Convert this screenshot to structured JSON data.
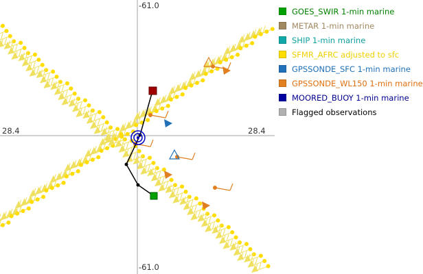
{
  "axes": {
    "top_label": "-61.0",
    "bottom_label": "-61.0",
    "left_label": "28.4",
    "right_label": "28.4"
  },
  "legend": {
    "items": [
      {
        "label": "GOES_SWIR 1-min marine",
        "color": "#00a000",
        "text_color": "#008000"
      },
      {
        "label": "METAR 1-min marine",
        "color": "#a08860",
        "text_color": "#a08860"
      },
      {
        "label": "SHIP 1-min marine",
        "color": "#10a8a8",
        "text_color": "#10a0a0"
      },
      {
        "label": "SFMR_AFRC adjusted to sfc",
        "color": "#ffdd00",
        "text_color": "#f0d000"
      },
      {
        "label": "GPSSONDE_SFC 1-min marine",
        "color": "#2070b8",
        "text_color": "#2070b8"
      },
      {
        "label": "GPSSONDE_WL150 1-min marine",
        "color": "#e08020",
        "text_color": "#e07010"
      },
      {
        "label": "MOORED_BUOY 1-min marine",
        "color": "#0000a0",
        "text_color": "#000090"
      },
      {
        "label": "Flagged observations",
        "color": "#b0b0b0",
        "text_color": "#000000"
      }
    ]
  },
  "colors": {
    "sfmr": "#ffdd00",
    "sfmr_barb": "#f0e060",
    "track": "#000000",
    "gpssonde_wl150": "#e08020",
    "gpssonde_sfc": "#2070b8",
    "start_marker": "#a00000",
    "end_marker": "#00a000",
    "buoy": "#0000c0",
    "crosshair": "#a0a0a0"
  },
  "icons": {
    "start": "square-marker",
    "end": "square-marker",
    "buoy": "concentric-circle-marker",
    "sonde_triangle": "triangle-marker"
  }
}
